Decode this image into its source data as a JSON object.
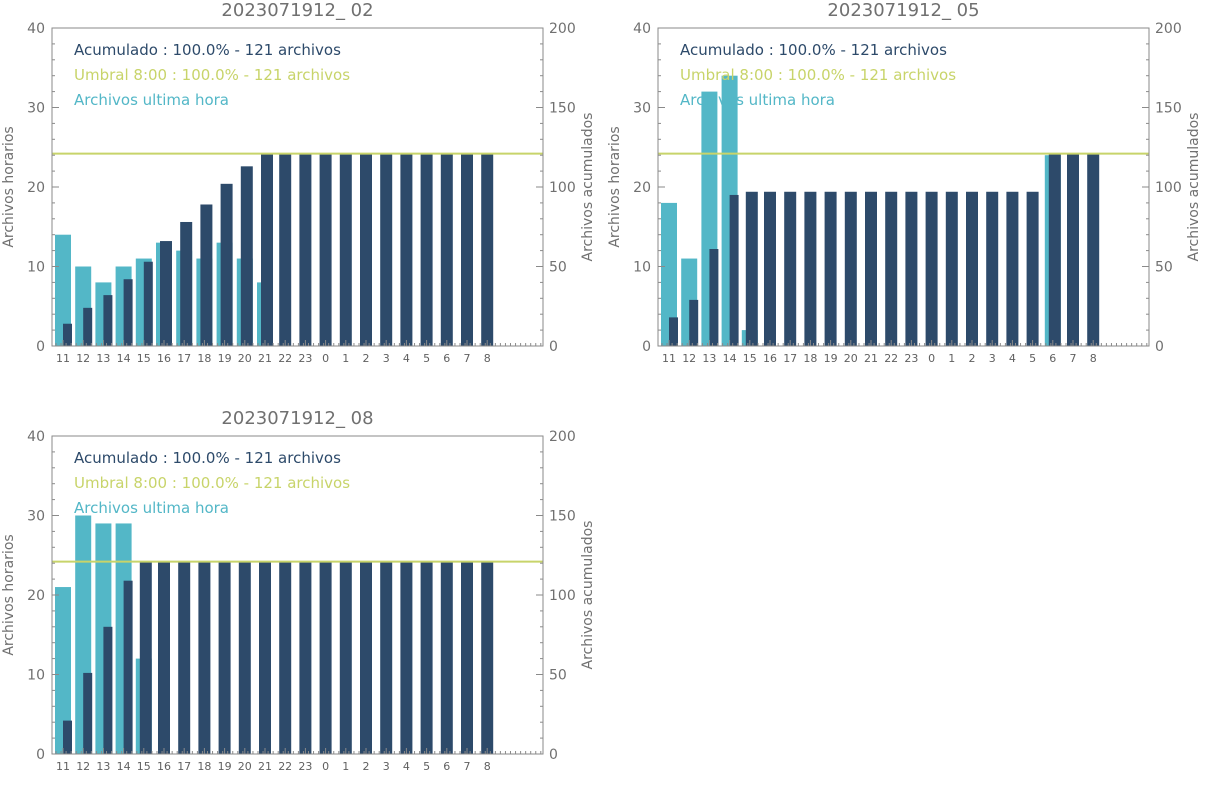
{
  "colors": {
    "hourly": "#53b7c7",
    "cumulative": "#2d4a6a",
    "threshold": "#c8d46a",
    "axis": "#8a8a8a",
    "text": "#707070"
  },
  "common": {
    "ylabel_left": "Archivos horarios",
    "ylabel_right": "Archivos acumulados",
    "ylim_left": [
      0,
      40
    ],
    "ylim_right": [
      0,
      200
    ],
    "yticks_left": [
      "0",
      "10",
      "20",
      "30",
      "40"
    ],
    "yticks_right": [
      "0",
      "50",
      "100",
      "150",
      "200"
    ],
    "categories": [
      "11",
      "12",
      "13",
      "14",
      "15",
      "16",
      "17",
      "18",
      "19",
      "20",
      "21",
      "22",
      "23",
      "0",
      "1",
      "2",
      "3",
      "4",
      "5",
      "6",
      "7",
      "8"
    ],
    "legend": {
      "cumulative": "Acumulado : 100.0% - 121 archivos",
      "threshold": "Umbral 8:00 : 100.0% - 121 archivos",
      "hourly": "Archivos ultima hora"
    }
  },
  "chart_data": [
    {
      "type": "bar",
      "title": "2023071912_ 02",
      "categories": [
        "11",
        "12",
        "13",
        "14",
        "15",
        "16",
        "17",
        "18",
        "19",
        "20",
        "21",
        "22",
        "23",
        "0",
        "1",
        "2",
        "3",
        "4",
        "5",
        "6",
        "7",
        "8"
      ],
      "series": [
        {
          "name": "Archivos ultima hora",
          "axis": "left",
          "values": [
            14,
            10,
            8,
            10,
            11,
            13,
            12,
            11,
            13,
            11,
            8,
            0,
            0,
            0,
            0,
            0,
            0,
            0,
            0,
            0,
            0,
            0
          ]
        },
        {
          "name": "Acumulado",
          "axis": "right",
          "values": [
            14,
            24,
            32,
            42,
            53,
            66,
            78,
            89,
            102,
            113,
            121,
            121,
            121,
            121,
            121,
            121,
            121,
            121,
            121,
            121,
            121,
            121
          ]
        }
      ],
      "threshold": 121,
      "xlabel": "",
      "ylabel": "Archivos horarios",
      "ylabel_right": "Archivos acumulados",
      "ylim": [
        0,
        40
      ],
      "ylim_right": [
        0,
        200
      ]
    },
    {
      "type": "bar",
      "title": "2023071912_ 05",
      "categories": [
        "11",
        "12",
        "13",
        "14",
        "15",
        "16",
        "17",
        "18",
        "19",
        "20",
        "21",
        "22",
        "23",
        "0",
        "1",
        "2",
        "3",
        "4",
        "5",
        "6",
        "7",
        "8"
      ],
      "series": [
        {
          "name": "Archivos ultima hora",
          "axis": "left",
          "values": [
            18,
            11,
            32,
            34,
            2,
            0,
            0,
            0,
            0,
            0,
            0,
            0,
            0,
            0,
            0,
            0,
            0,
            0,
            0,
            24,
            0,
            0
          ]
        },
        {
          "name": "Acumulado",
          "axis": "right",
          "values": [
            18,
            29,
            61,
            95,
            97,
            97,
            97,
            97,
            97,
            97,
            97,
            97,
            97,
            97,
            97,
            97,
            97,
            97,
            97,
            121,
            121,
            121
          ]
        }
      ],
      "threshold": 121,
      "xlabel": "",
      "ylabel": "Archivos horarios",
      "ylabel_right": "Archivos acumulados",
      "ylim": [
        0,
        40
      ],
      "ylim_right": [
        0,
        200
      ]
    },
    {
      "type": "bar",
      "title": "2023071912_ 08",
      "categories": [
        "11",
        "12",
        "13",
        "14",
        "15",
        "16",
        "17",
        "18",
        "19",
        "20",
        "21",
        "22",
        "23",
        "0",
        "1",
        "2",
        "3",
        "4",
        "5",
        "6",
        "7",
        "8"
      ],
      "series": [
        {
          "name": "Archivos ultima hora",
          "axis": "left",
          "values": [
            21,
            30,
            29,
            29,
            12,
            0,
            0,
            0,
            0,
            0,
            0,
            0,
            0,
            0,
            0,
            0,
            0,
            0,
            0,
            0,
            0,
            0
          ]
        },
        {
          "name": "Acumulado",
          "axis": "right",
          "values": [
            21,
            51,
            80,
            109,
            121,
            121,
            121,
            121,
            121,
            121,
            121,
            121,
            121,
            121,
            121,
            121,
            121,
            121,
            121,
            121,
            121,
            121
          ]
        }
      ],
      "threshold": 121,
      "xlabel": "",
      "ylabel": "Archivos horarios",
      "ylabel_right": "Archivos acumulados",
      "ylim": [
        0,
        40
      ],
      "ylim_right": [
        0,
        200
      ]
    }
  ]
}
